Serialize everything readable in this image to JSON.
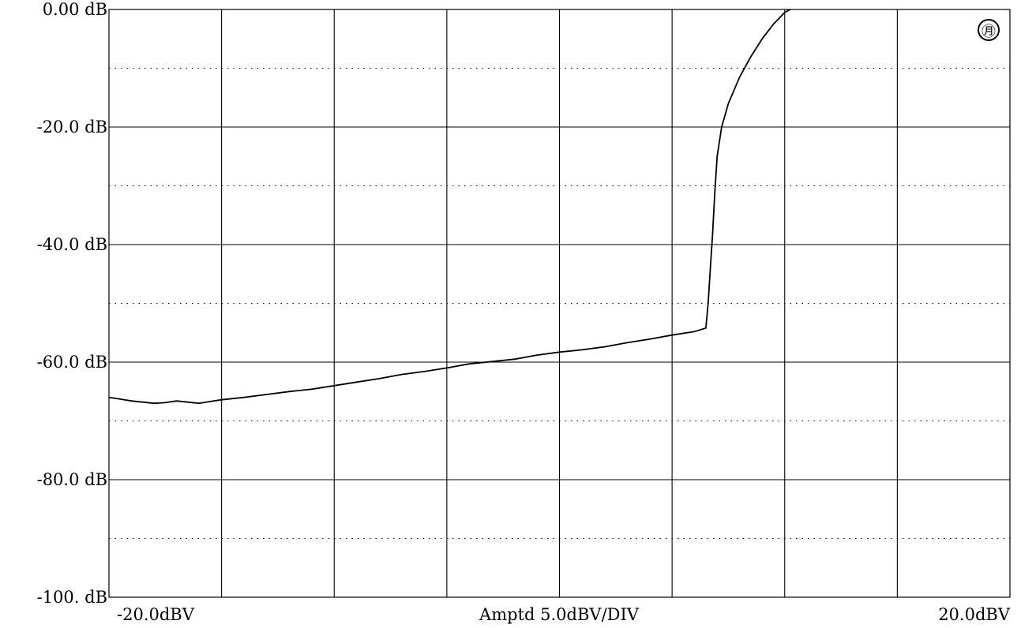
{
  "chart_data": {
    "type": "line",
    "title": "",
    "xlabel": "Amptd  5.0dBV/DIV",
    "ylabel": "",
    "x_tick_labels": [
      "-20.0dBV",
      "20.0dBV"
    ],
    "y_tick_labels": [
      "0.00 dB",
      "-20.0 dB",
      "-40.0 dB",
      "-60.0 dB",
      "-80.0 dB",
      "-100. dB"
    ],
    "xlim": [
      -20,
      20
    ],
    "ylim": [
      -100,
      0
    ],
    "x_major_step": 5,
    "y_major_step": 20,
    "y_minor_step": 10,
    "grid": true,
    "series": [
      {
        "x": [
          -20,
          -19.5,
          -19,
          -18.5,
          -18,
          -17.5,
          -17,
          -16.5,
          -16,
          -15.5,
          -15,
          -14,
          -13,
          -12,
          -11,
          -10,
          -9,
          -8,
          -7,
          -6,
          -5,
          -4,
          -3,
          -2,
          -1,
          0,
          1,
          2,
          3,
          4,
          5,
          6,
          6.5,
          6.6,
          6.7,
          6.8,
          6.9,
          7.0,
          7.2,
          7.5,
          8.0,
          8.5,
          9.0,
          9.5,
          10.0,
          10.5
        ],
        "values": [
          -66.0,
          -66.3,
          -66.6,
          -66.8,
          -67.0,
          -66.9,
          -66.6,
          -66.8,
          -67.0,
          -66.7,
          -66.4,
          -66.0,
          -65.5,
          -65.0,
          -64.6,
          -64.0,
          -63.4,
          -62.8,
          -62.1,
          -61.6,
          -61.0,
          -60.3,
          -59.9,
          -59.5,
          -58.8,
          -58.3,
          -57.9,
          -57.4,
          -56.7,
          -56.1,
          -55.4,
          -54.8,
          -54.2,
          -50.0,
          -44.0,
          -38.0,
          -31.0,
          -25.0,
          -20.0,
          -16.0,
          -11.5,
          -8.0,
          -5.0,
          -2.5,
          -0.5,
          0.5
        ]
      }
    ],
    "annotation_symbol": "㊊"
  },
  "colors": {
    "background": "#ffffff",
    "grid": "#000000",
    "trace": "#000000"
  }
}
